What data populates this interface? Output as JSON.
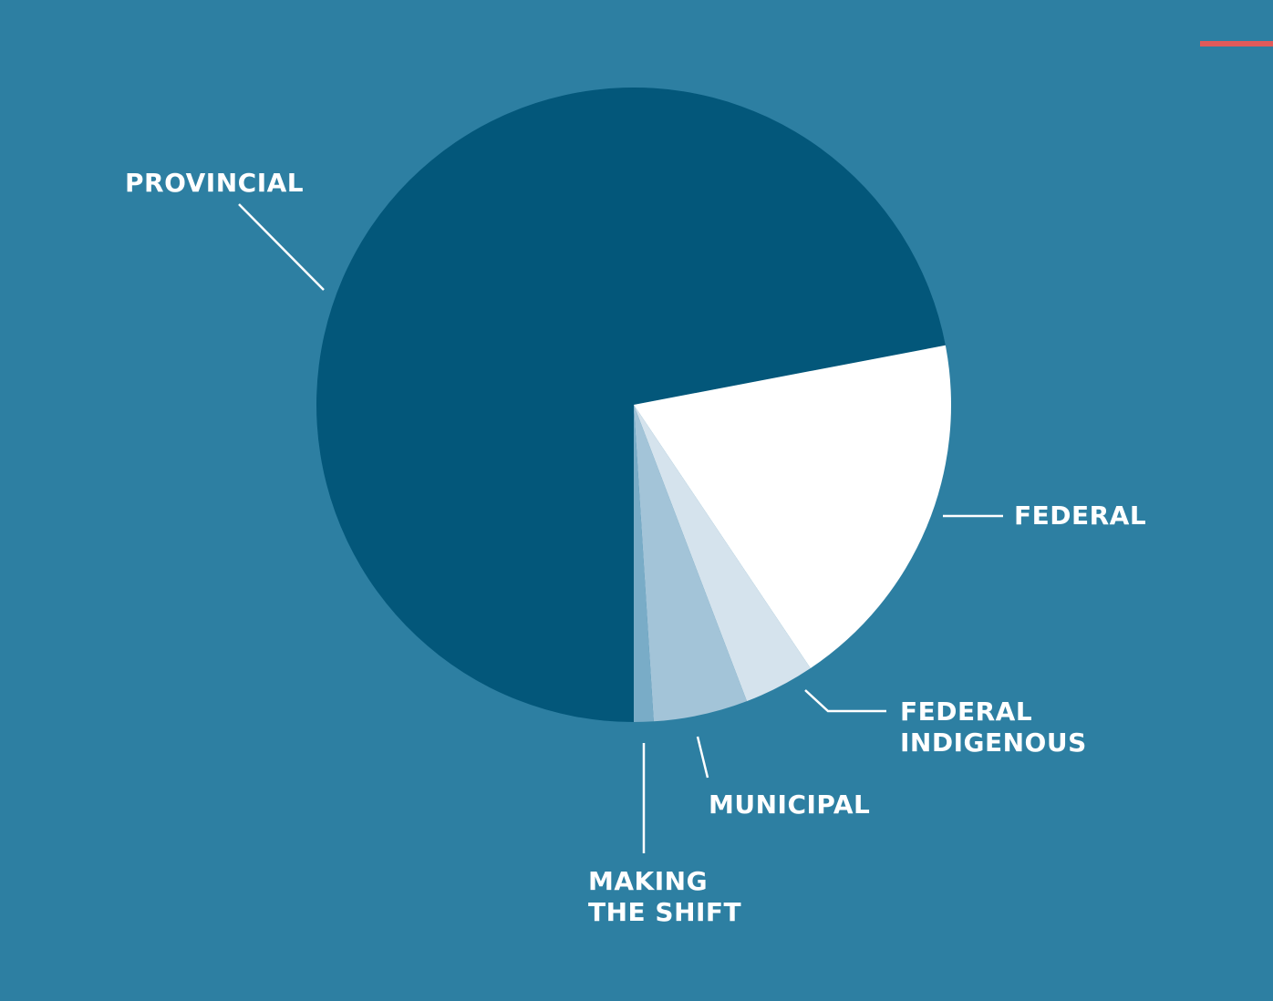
{
  "colors": {
    "background": "#2d7fa2",
    "accent_bar": "#e05a5a",
    "label": "#ffffff"
  },
  "chart_data": {
    "type": "pie",
    "title": "",
    "start": "6 o'clock, clockwise",
    "slices": [
      {
        "name": "PROVINCIAL",
        "label_lines": [
          "PROVINCIAL"
        ],
        "value": 72.0,
        "color": "#03577a"
      },
      {
        "name": "FEDERAL",
        "label_lines": [
          "FEDERAL"
        ],
        "value": 18.6,
        "color": "#ffffff"
      },
      {
        "name": "FEDERAL INDIGENOUS",
        "label_lines": [
          "FEDERAL",
          "INDIGENOUS"
        ],
        "value": 3.6,
        "color": "#d5e3ed"
      },
      {
        "name": "MUNICIPAL",
        "label_lines": [
          "MUNICIPAL"
        ],
        "value": 4.8,
        "color": "#a3c4d8"
      },
      {
        "name": "MAKING THE SHIFT",
        "label_lines": [
          "MAKING",
          "THE SHIFT"
        ],
        "value": 1.0,
        "color": "#79acc7"
      }
    ]
  }
}
